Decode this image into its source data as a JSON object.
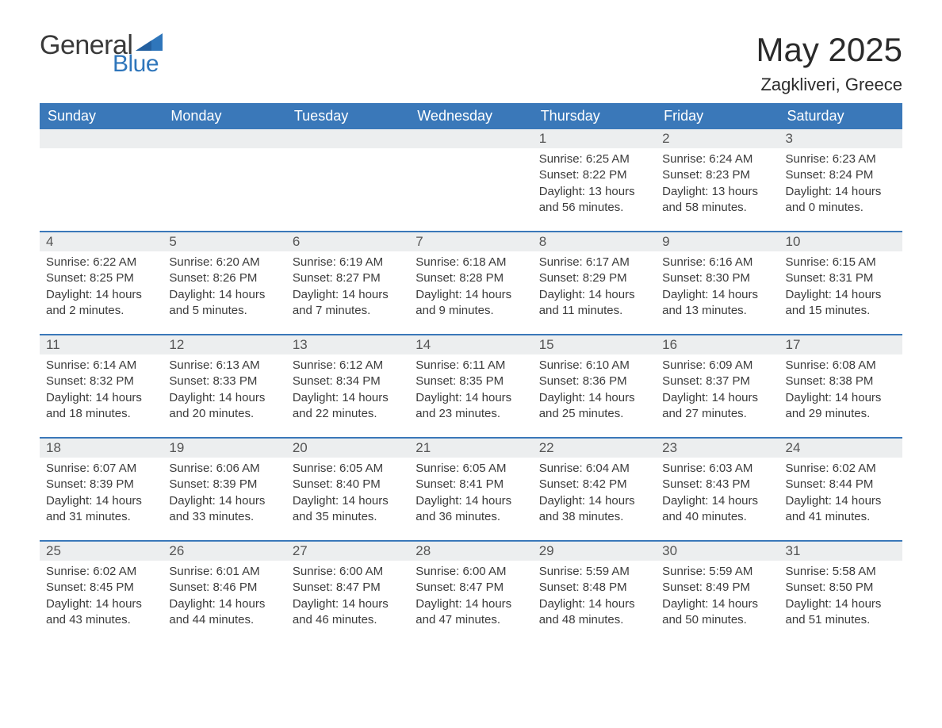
{
  "logo": {
    "text1": "General",
    "text2": "Blue",
    "accent_color": "#2f76bb",
    "text_color": "#3a3a3a"
  },
  "title": "May 2025",
  "location": "Zagkliveri, Greece",
  "colors": {
    "header_bg": "#3a78b9",
    "header_text": "#ffffff",
    "daynum_bg": "#eceeef",
    "daynum_text": "#555555",
    "body_text": "#3b3b3b",
    "week_border": "#3a78b9",
    "page_bg": "#ffffff"
  },
  "typography": {
    "title_fontsize": 42,
    "subtitle_fontsize": 22,
    "header_fontsize": 18,
    "daynum_fontsize": 17,
    "detail_fontsize": 15,
    "font_family": "Arial"
  },
  "day_headers": [
    "Sunday",
    "Monday",
    "Tuesday",
    "Wednesday",
    "Thursday",
    "Friday",
    "Saturday"
  ],
  "weeks": [
    [
      {
        "empty": true
      },
      {
        "empty": true
      },
      {
        "empty": true
      },
      {
        "empty": true
      },
      {
        "day": "1",
        "sunrise": "Sunrise: 6:25 AM",
        "sunset": "Sunset: 8:22 PM",
        "daylight": "Daylight: 13 hours and 56 minutes."
      },
      {
        "day": "2",
        "sunrise": "Sunrise: 6:24 AM",
        "sunset": "Sunset: 8:23 PM",
        "daylight": "Daylight: 13 hours and 58 minutes."
      },
      {
        "day": "3",
        "sunrise": "Sunrise: 6:23 AM",
        "sunset": "Sunset: 8:24 PM",
        "daylight": "Daylight: 14 hours and 0 minutes."
      }
    ],
    [
      {
        "day": "4",
        "sunrise": "Sunrise: 6:22 AM",
        "sunset": "Sunset: 8:25 PM",
        "daylight": "Daylight: 14 hours and 2 minutes."
      },
      {
        "day": "5",
        "sunrise": "Sunrise: 6:20 AM",
        "sunset": "Sunset: 8:26 PM",
        "daylight": "Daylight: 14 hours and 5 minutes."
      },
      {
        "day": "6",
        "sunrise": "Sunrise: 6:19 AM",
        "sunset": "Sunset: 8:27 PM",
        "daylight": "Daylight: 14 hours and 7 minutes."
      },
      {
        "day": "7",
        "sunrise": "Sunrise: 6:18 AM",
        "sunset": "Sunset: 8:28 PM",
        "daylight": "Daylight: 14 hours and 9 minutes."
      },
      {
        "day": "8",
        "sunrise": "Sunrise: 6:17 AM",
        "sunset": "Sunset: 8:29 PM",
        "daylight": "Daylight: 14 hours and 11 minutes."
      },
      {
        "day": "9",
        "sunrise": "Sunrise: 6:16 AM",
        "sunset": "Sunset: 8:30 PM",
        "daylight": "Daylight: 14 hours and 13 minutes."
      },
      {
        "day": "10",
        "sunrise": "Sunrise: 6:15 AM",
        "sunset": "Sunset: 8:31 PM",
        "daylight": "Daylight: 14 hours and 15 minutes."
      }
    ],
    [
      {
        "day": "11",
        "sunrise": "Sunrise: 6:14 AM",
        "sunset": "Sunset: 8:32 PM",
        "daylight": "Daylight: 14 hours and 18 minutes."
      },
      {
        "day": "12",
        "sunrise": "Sunrise: 6:13 AM",
        "sunset": "Sunset: 8:33 PM",
        "daylight": "Daylight: 14 hours and 20 minutes."
      },
      {
        "day": "13",
        "sunrise": "Sunrise: 6:12 AM",
        "sunset": "Sunset: 8:34 PM",
        "daylight": "Daylight: 14 hours and 22 minutes."
      },
      {
        "day": "14",
        "sunrise": "Sunrise: 6:11 AM",
        "sunset": "Sunset: 8:35 PM",
        "daylight": "Daylight: 14 hours and 23 minutes."
      },
      {
        "day": "15",
        "sunrise": "Sunrise: 6:10 AM",
        "sunset": "Sunset: 8:36 PM",
        "daylight": "Daylight: 14 hours and 25 minutes."
      },
      {
        "day": "16",
        "sunrise": "Sunrise: 6:09 AM",
        "sunset": "Sunset: 8:37 PM",
        "daylight": "Daylight: 14 hours and 27 minutes."
      },
      {
        "day": "17",
        "sunrise": "Sunrise: 6:08 AM",
        "sunset": "Sunset: 8:38 PM",
        "daylight": "Daylight: 14 hours and 29 minutes."
      }
    ],
    [
      {
        "day": "18",
        "sunrise": "Sunrise: 6:07 AM",
        "sunset": "Sunset: 8:39 PM",
        "daylight": "Daylight: 14 hours and 31 minutes."
      },
      {
        "day": "19",
        "sunrise": "Sunrise: 6:06 AM",
        "sunset": "Sunset: 8:39 PM",
        "daylight": "Daylight: 14 hours and 33 minutes."
      },
      {
        "day": "20",
        "sunrise": "Sunrise: 6:05 AM",
        "sunset": "Sunset: 8:40 PM",
        "daylight": "Daylight: 14 hours and 35 minutes."
      },
      {
        "day": "21",
        "sunrise": "Sunrise: 6:05 AM",
        "sunset": "Sunset: 8:41 PM",
        "daylight": "Daylight: 14 hours and 36 minutes."
      },
      {
        "day": "22",
        "sunrise": "Sunrise: 6:04 AM",
        "sunset": "Sunset: 8:42 PM",
        "daylight": "Daylight: 14 hours and 38 minutes."
      },
      {
        "day": "23",
        "sunrise": "Sunrise: 6:03 AM",
        "sunset": "Sunset: 8:43 PM",
        "daylight": "Daylight: 14 hours and 40 minutes."
      },
      {
        "day": "24",
        "sunrise": "Sunrise: 6:02 AM",
        "sunset": "Sunset: 8:44 PM",
        "daylight": "Daylight: 14 hours and 41 minutes."
      }
    ],
    [
      {
        "day": "25",
        "sunrise": "Sunrise: 6:02 AM",
        "sunset": "Sunset: 8:45 PM",
        "daylight": "Daylight: 14 hours and 43 minutes."
      },
      {
        "day": "26",
        "sunrise": "Sunrise: 6:01 AM",
        "sunset": "Sunset: 8:46 PM",
        "daylight": "Daylight: 14 hours and 44 minutes."
      },
      {
        "day": "27",
        "sunrise": "Sunrise: 6:00 AM",
        "sunset": "Sunset: 8:47 PM",
        "daylight": "Daylight: 14 hours and 46 minutes."
      },
      {
        "day": "28",
        "sunrise": "Sunrise: 6:00 AM",
        "sunset": "Sunset: 8:47 PM",
        "daylight": "Daylight: 14 hours and 47 minutes."
      },
      {
        "day": "29",
        "sunrise": "Sunrise: 5:59 AM",
        "sunset": "Sunset: 8:48 PM",
        "daylight": "Daylight: 14 hours and 48 minutes."
      },
      {
        "day": "30",
        "sunrise": "Sunrise: 5:59 AM",
        "sunset": "Sunset: 8:49 PM",
        "daylight": "Daylight: 14 hours and 50 minutes."
      },
      {
        "day": "31",
        "sunrise": "Sunrise: 5:58 AM",
        "sunset": "Sunset: 8:50 PM",
        "daylight": "Daylight: 14 hours and 51 minutes."
      }
    ]
  ]
}
